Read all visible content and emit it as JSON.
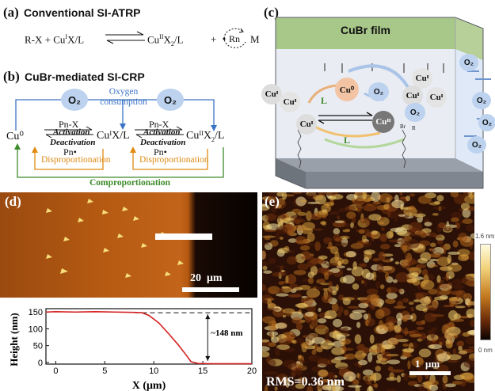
{
  "panel_a": {
    "label": "(a)",
    "title": "Conventional SI-ATRP",
    "left": "R-X + Cu",
    "left_sup": "I",
    "left_tail": "X/L",
    "right": "Cu",
    "right_sup": "II",
    "right_tail": "X",
    "right_sub": "2",
    "right_end": "/L",
    "plus": "+",
    "rn": "Rn",
    "m": "M"
  },
  "panel_b": {
    "label": "(b)",
    "title": "CuBr-mediated SI-CRP",
    "o2": "O₂",
    "oxygen_consumption": "Oxygen consumption",
    "cu0": "Cu⁰",
    "cu1": "CuᴵX/L",
    "cu2_base": "CuᴵᴵX",
    "cu2_sub": "2",
    "cu2_end": "/L",
    "pnx": "Pn-X",
    "activation": "Activation",
    "deactivation": "Deactivation",
    "pn": "Pn•",
    "disproportionation": "Disproportionation",
    "comproportionation": "Comproportionation"
  },
  "panel_c": {
    "label": "(c)",
    "film": "CuBr film",
    "cu1": "Cuᴵ",
    "cu0": "Cu⁰",
    "cu2": "Cuᴵᴵ",
    "o2": "O₂",
    "l": "L",
    "br": "Br",
    "r": "R"
  },
  "panel_d": {
    "label": "(d)",
    "scale": "20  μm",
    "annotation": "~148 nm",
    "chart_data": {
      "type": "line",
      "xlabel": "X (μm)",
      "ylabel": "Height (nm)",
      "xlim": [
        -1,
        20
      ],
      "ylim": [
        -5,
        160
      ],
      "xticks": [
        "0",
        "5",
        "10",
        "15",
        "20"
      ],
      "yticks": [
        "0",
        "50",
        "100",
        "150"
      ],
      "reference_line": 148,
      "series": [
        {
          "color": "#d42020",
          "x": [
            -1,
            0,
            2,
            4,
            6,
            8,
            8.8,
            9.5,
            10.5,
            11.5,
            12.5,
            13.3,
            13.8,
            14.5,
            16,
            18,
            20
          ],
          "y": [
            150,
            151,
            150,
            151,
            150,
            149,
            148,
            140,
            118,
            86,
            52,
            22,
            2,
            -3,
            -4,
            -4,
            -4
          ]
        }
      ]
    }
  },
  "panel_e": {
    "label": "(e)",
    "scale": "1  μm",
    "rms": "RMS=0.36 nm",
    "cbar_max": "1.6 nm",
    "cbar_min": "0 nm"
  }
}
